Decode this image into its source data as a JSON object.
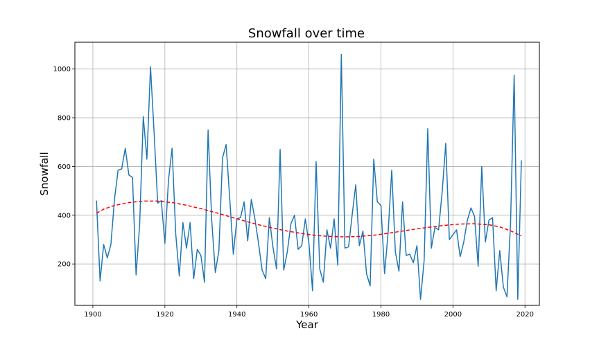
{
  "chart_data": {
    "type": "line",
    "title": "Snowfall over time",
    "xlabel": "Year",
    "ylabel": "Snowfall",
    "xlim": [
      1895,
      2024
    ],
    "ylim": [
      30,
      1110
    ],
    "xticks": [
      1900,
      1920,
      1940,
      1960,
      1980,
      2000,
      2020
    ],
    "yticks": [
      200,
      400,
      600,
      800,
      1000
    ],
    "grid": true,
    "legend": "none",
    "series": [
      {
        "style": "solid",
        "color": "#1f77b4",
        "x": [
          1901,
          1902,
          1903,
          1904,
          1905,
          1906,
          1907,
          1908,
          1909,
          1910,
          1911,
          1912,
          1913,
          1914,
          1915,
          1916,
          1917,
          1918,
          1919,
          1920,
          1921,
          1922,
          1923,
          1924,
          1925,
          1926,
          1927,
          1928,
          1929,
          1930,
          1931,
          1932,
          1933,
          1934,
          1935,
          1936,
          1937,
          1938,
          1939,
          1940,
          1941,
          1942,
          1943,
          1944,
          1945,
          1946,
          1947,
          1948,
          1949,
          1950,
          1951,
          1952,
          1953,
          1954,
          1955,
          1956,
          1957,
          1958,
          1959,
          1960,
          1961,
          1962,
          1963,
          1964,
          1965,
          1966,
          1967,
          1968,
          1969,
          1970,
          1971,
          1972,
          1973,
          1974,
          1975,
          1976,
          1977,
          1978,
          1979,
          1980,
          1981,
          1982,
          1983,
          1984,
          1985,
          1986,
          1987,
          1988,
          1989,
          1990,
          1991,
          1992,
          1993,
          1994,
          1995,
          1996,
          1997,
          1998,
          1999,
          2000,
          2001,
          2002,
          2003,
          2004,
          2005,
          2006,
          2007,
          2008,
          2009,
          2010,
          2011,
          2012,
          2013,
          2014,
          2015,
          2016,
          2017,
          2018,
          2019
        ],
        "y": [
          460,
          130,
          280,
          225,
          280,
          465,
          585,
          590,
          675,
          565,
          555,
          155,
          365,
          805,
          630,
          1010,
          740,
          450,
          460,
          285,
          545,
          675,
          325,
          150,
          370,
          265,
          370,
          140,
          260,
          235,
          125,
          750,
          380,
          165,
          255,
          635,
          690,
          470,
          240,
          385,
          390,
          455,
          295,
          465,
          385,
          285,
          175,
          140,
          390,
          270,
          180,
          670,
          175,
          250,
          365,
          400,
          260,
          275,
          385,
          285,
          90,
          620,
          180,
          125,
          340,
          265,
          385,
          195,
          1060,
          265,
          270,
          400,
          525,
          275,
          335,
          160,
          110,
          630,
          455,
          440,
          160,
          330,
          585,
          250,
          170,
          455,
          235,
          240,
          205,
          275,
          55,
          215,
          755,
          265,
          350,
          340,
          495,
          695,
          300,
          320,
          340,
          230,
          290,
          380,
          430,
          395,
          190,
          600,
          290,
          380,
          390,
          90,
          255,
          105,
          65,
          370,
          975,
          55,
          625
        ]
      },
      {
        "style": "dashed",
        "color": "#ff0000",
        "x": [
          1901,
          1903,
          1906,
          1910,
          1914,
          1918,
          1922,
          1926,
          1930,
          1934,
          1938,
          1942,
          1946,
          1950,
          1954,
          1958,
          1962,
          1966,
          1970,
          1974,
          1978,
          1982,
          1986,
          1990,
          1994,
          1998,
          2002,
          2006,
          2010,
          2013,
          2016,
          2019
        ],
        "y": [
          408,
          425,
          440,
          452,
          458,
          458,
          452,
          441,
          427,
          411,
          394,
          377,
          361,
          347,
          335,
          325,
          317,
          313,
          311,
          313,
          318,
          326,
          335,
          344,
          352,
          359,
          364,
          365,
          361,
          352,
          336,
          315
        ]
      }
    ]
  }
}
